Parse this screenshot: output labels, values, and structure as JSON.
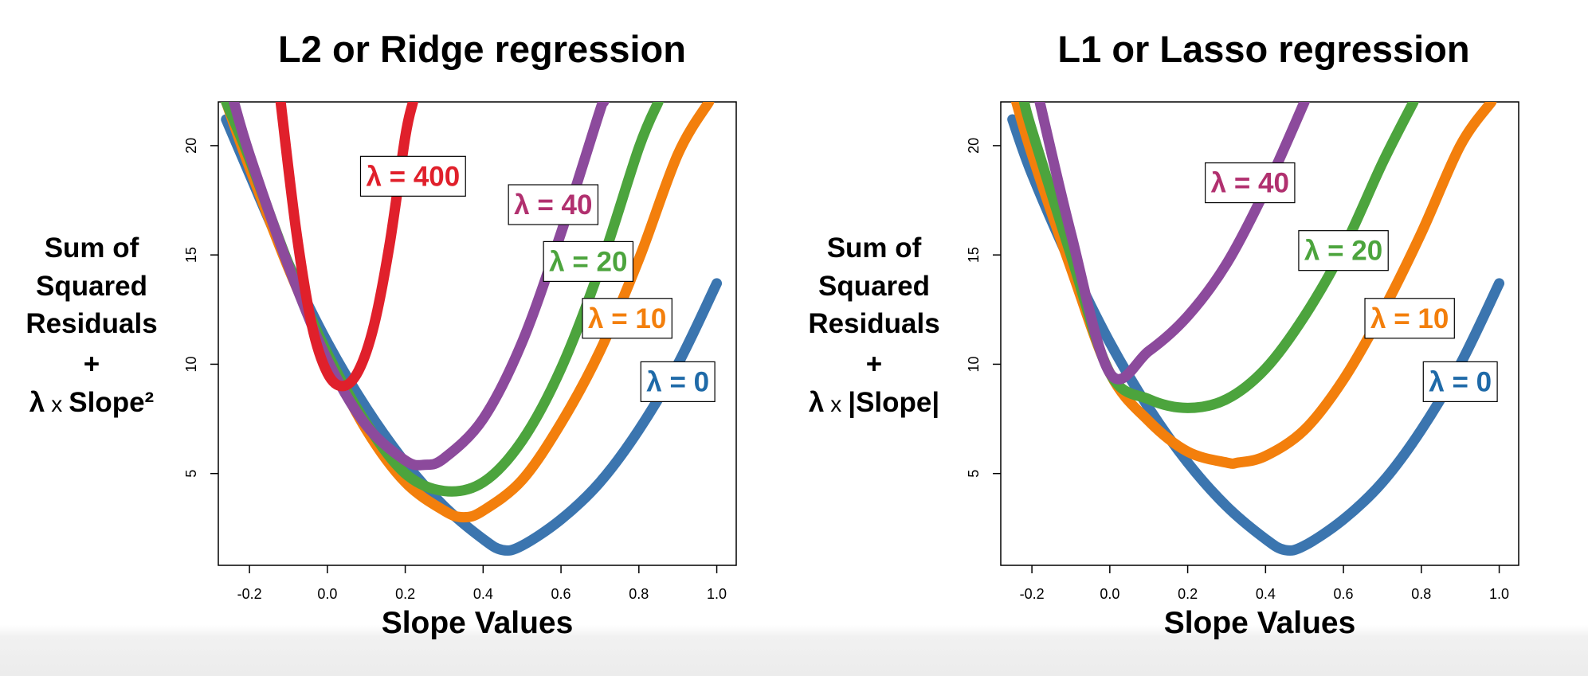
{
  "chart_data": [
    {
      "type": "line",
      "title": "L2 or Ridge regression",
      "xlabel": "Slope Values",
      "ylabel": [
        "Sum of",
        "Squared",
        "Residuals",
        "+",
        "λ",
        "x",
        "Slope²"
      ],
      "xlim": [
        -0.28,
        1.05
      ],
      "ylim": [
        0.8,
        22.0
      ],
      "xticks": [
        "-0.2",
        "0.0",
        "0.2",
        "0.4",
        "0.6",
        "0.8",
        "1.0"
      ],
      "xtick_values": [
        -0.2,
        0.0,
        0.2,
        0.4,
        0.6,
        0.8,
        1.0
      ],
      "yticks": [
        "5",
        "10",
        "15",
        "20"
      ],
      "ytick_values": [
        5,
        10,
        15,
        20
      ],
      "grid": false,
      "series": [
        {
          "name": "λ = 0",
          "color": "#3b75af",
          "x": [
            -0.26,
            -0.2,
            -0.1,
            0.0,
            0.1,
            0.2,
            0.3,
            0.4,
            0.45,
            0.5,
            0.6,
            0.7,
            0.8,
            0.9,
            1.0
          ],
          "y": [
            21.2,
            18.7,
            14.6,
            11.0,
            8.0,
            5.5,
            3.5,
            2.0,
            1.5,
            1.7,
            2.9,
            4.6,
            7.0,
            10.0,
            13.7
          ]
        },
        {
          "name": "λ = 10",
          "color": "#f37f0c",
          "x": [
            -0.26,
            -0.2,
            -0.1,
            0.0,
            0.1,
            0.2,
            0.3,
            0.35,
            0.4,
            0.5,
            0.6,
            0.7,
            0.8,
            0.9,
            0.98
          ],
          "y": [
            22.0,
            19.0,
            14.4,
            10.4,
            7.0,
            4.6,
            3.3,
            3.0,
            3.3,
            4.7,
            7.3,
            10.6,
            14.8,
            19.6,
            22.0
          ]
        },
        {
          "name": "λ = 20",
          "color": "#4ca43d",
          "x": [
            -0.26,
            -0.2,
            -0.1,
            0.0,
            0.1,
            0.2,
            0.3,
            0.4,
            0.5,
            0.6,
            0.7,
            0.8,
            0.85
          ],
          "y": [
            22.0,
            19.4,
            14.6,
            10.5,
            7.3,
            5.0,
            4.2,
            4.6,
            6.5,
            9.8,
            14.4,
            19.9,
            22.0
          ]
        },
        {
          "name": "λ = 40",
          "color": "#8c4a9c",
          "x": [
            -0.24,
            -0.2,
            -0.1,
            0.0,
            0.1,
            0.2,
            0.25,
            0.3,
            0.4,
            0.5,
            0.6,
            0.7,
            0.71
          ],
          "y": [
            22.0,
            19.6,
            14.5,
            10.2,
            7.2,
            5.6,
            5.4,
            5.7,
            7.5,
            11.0,
            16.0,
            21.6,
            22.0
          ]
        },
        {
          "name": "λ = 400",
          "color": "#e0202b",
          "x": [
            -0.12,
            -0.08,
            -0.04,
            0.0,
            0.04,
            0.08,
            0.12,
            0.16,
            0.2,
            0.22
          ],
          "y": [
            22.0,
            16.1,
            11.8,
            9.6,
            9.0,
            9.7,
            11.8,
            15.5,
            20.4,
            22.0
          ]
        }
      ],
      "annotations": [
        {
          "text": "λ = 400",
          "color": "#e0202b",
          "x": 0.22,
          "y": 18.6
        },
        {
          "text": "λ = 40",
          "color": "#b1306f",
          "x": 0.58,
          "y": 17.3
        },
        {
          "text": "λ = 20",
          "color": "#4ca43d",
          "x": 0.67,
          "y": 14.7
        },
        {
          "text": "λ = 10",
          "color": "#f37f0c",
          "x": 0.77,
          "y": 12.1
        },
        {
          "text": "λ = 0",
          "color": "#1f6aa8",
          "x": 0.9,
          "y": 9.2
        }
      ]
    },
    {
      "type": "line",
      "title": "L1 or Lasso regression",
      "xlabel": "Slope Values",
      "ylabel": [
        "Sum of",
        "Squared",
        "Residuals",
        "+",
        "λ",
        "x",
        "|Slope|"
      ],
      "xlim": [
        -0.28,
        1.05
      ],
      "ylim": [
        0.8,
        22.0
      ],
      "xticks": [
        "-0.2",
        "0.0",
        "0.2",
        "0.4",
        "0.6",
        "0.8",
        "1.0"
      ],
      "xtick_values": [
        -0.2,
        0.0,
        0.2,
        0.4,
        0.6,
        0.8,
        1.0
      ],
      "yticks": [
        "5",
        "10",
        "15",
        "20"
      ],
      "ytick_values": [
        5,
        10,
        15,
        20
      ],
      "grid": false,
      "series": [
        {
          "name": "λ = 0",
          "color": "#3b75af",
          "x": [
            -0.25,
            -0.2,
            -0.1,
            0.0,
            0.1,
            0.2,
            0.3,
            0.4,
            0.45,
            0.5,
            0.6,
            0.7,
            0.8,
            0.9,
            1.0
          ],
          "y": [
            21.2,
            18.7,
            14.6,
            11.0,
            8.0,
            5.5,
            3.5,
            2.0,
            1.5,
            1.7,
            2.9,
            4.6,
            7.0,
            10.0,
            13.7
          ]
        },
        {
          "name": "λ = 10",
          "color": "#f37f0c",
          "x": [
            -0.24,
            -0.2,
            -0.1,
            0.0,
            0.1,
            0.2,
            0.3,
            0.33,
            0.4,
            0.5,
            0.6,
            0.7,
            0.8,
            0.9,
            0.98
          ],
          "y": [
            22.0,
            19.6,
            14.4,
            9.6,
            7.4,
            6.0,
            5.5,
            5.5,
            5.8,
            7.0,
            9.3,
            12.4,
            16.0,
            20.0,
            22.0
          ]
        },
        {
          "name": "λ = 20",
          "color": "#4ca43d",
          "x": [
            -0.22,
            -0.2,
            -0.1,
            0.0,
            0.1,
            0.2,
            0.3,
            0.4,
            0.5,
            0.6,
            0.7,
            0.78
          ],
          "y": [
            22.0,
            20.7,
            15.0,
            9.6,
            8.4,
            8.0,
            8.4,
            9.8,
            12.2,
            15.3,
            19.2,
            22.0
          ]
        },
        {
          "name": "λ = 40",
          "color": "#8c4a9c",
          "x": [
            -0.18,
            -0.1,
            0.0,
            0.1,
            0.2,
            0.3,
            0.4,
            0.5
          ],
          "y": [
            22.0,
            16.0,
            9.6,
            10.6,
            12.2,
            14.6,
            18.0,
            22.0
          ]
        }
      ],
      "annotations": [
        {
          "text": "λ = 40",
          "color": "#b1306f",
          "x": 0.36,
          "y": 18.3
        },
        {
          "text": "λ = 20",
          "color": "#4ca43d",
          "x": 0.6,
          "y": 15.2
        },
        {
          "text": "λ = 10",
          "color": "#f37f0c",
          "x": 0.77,
          "y": 12.1
        },
        {
          "text": "λ = 0",
          "color": "#1f6aa8",
          "x": 0.9,
          "y": 9.2
        }
      ]
    }
  ]
}
